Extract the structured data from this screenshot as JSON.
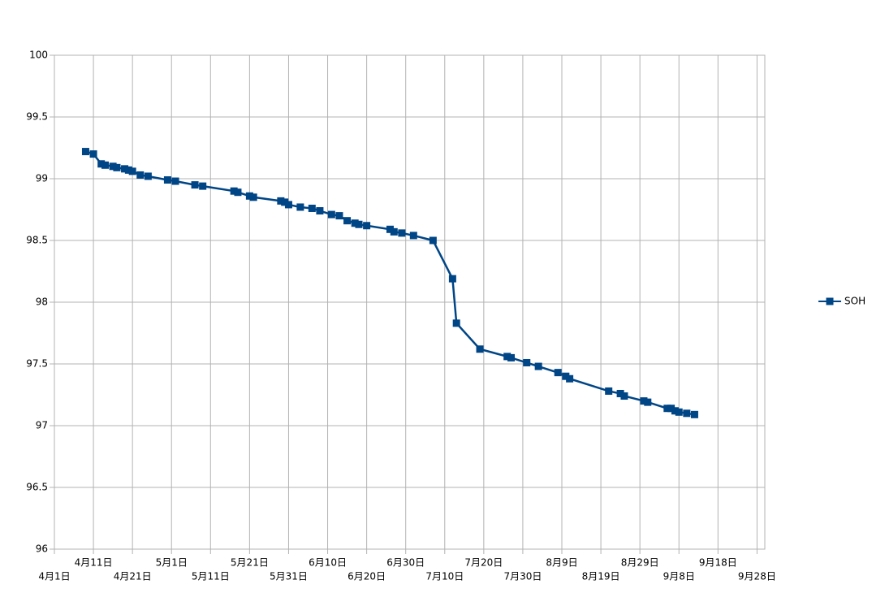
{
  "chart_data": {
    "type": "line",
    "x": [
      "4月9日",
      "4月11日",
      "4月13日",
      "4月14日",
      "4月16日",
      "4月17日",
      "4月19日",
      "4月20日",
      "4月21日",
      "4月23日",
      "4月25日",
      "4月30日",
      "5月2日",
      "5月7日",
      "5月9日",
      "5月17日",
      "5月18日",
      "5月21日",
      "5月22日",
      "5月29日",
      "5月30日",
      "5月31日",
      "6月3日",
      "6月6日",
      "6月8日",
      "6月11日",
      "6月13日",
      "6月15日",
      "6月17日",
      "6月18日",
      "6月20日",
      "6月26日",
      "6月27日",
      "6月29日",
      "7月2日",
      "7月7日",
      "7月12日",
      "7月13日",
      "7月19日",
      "7月26日",
      "7月27日",
      "7月31日",
      "8月3日",
      "8月8日",
      "8月10日",
      "8月11日",
      "8月21日",
      "8月24日",
      "8月25日",
      "8月30日",
      "8月31日",
      "9月5日",
      "9月6日",
      "9月7日",
      "9月8日",
      "9月10日",
      "9月12日"
    ],
    "series": [
      {
        "name": "SOH",
        "color": "#004586",
        "values": [
          99.22,
          99.2,
          99.12,
          99.11,
          99.1,
          99.09,
          99.08,
          99.07,
          99.06,
          99.03,
          99.02,
          98.99,
          98.98,
          98.95,
          98.94,
          98.9,
          98.89,
          98.86,
          98.85,
          98.82,
          98.81,
          98.79,
          98.77,
          98.76,
          98.74,
          98.71,
          98.7,
          98.66,
          98.64,
          98.63,
          98.62,
          98.59,
          98.57,
          98.56,
          98.54,
          98.5,
          98.19,
          97.83,
          97.62,
          97.56,
          97.55,
          97.51,
          97.48,
          97.43,
          97.4,
          97.38,
          97.28,
          97.26,
          97.24,
          97.2,
          97.19,
          97.14,
          97.14,
          97.12,
          97.11,
          97.1,
          97.09
        ]
      }
    ],
    "xlim": [
      "4月1日",
      "9月30日"
    ],
    "xticks": [
      "4月1日",
      "4月11日",
      "4月21日",
      "5月1日",
      "5月11日",
      "5月21日",
      "5月31日",
      "6月10日",
      "6月20日",
      "6月30日",
      "7月10日",
      "7月20日",
      "7月30日",
      "8月9日",
      "8月19日",
      "8月29日",
      "9月8日",
      "9月18日",
      "9月28日"
    ],
    "ylim": [
      96,
      100
    ],
    "yticks": [
      96,
      96.5,
      97,
      97.5,
      98,
      98.5,
      99,
      99.5,
      100
    ],
    "grid": true,
    "legend": "right"
  }
}
